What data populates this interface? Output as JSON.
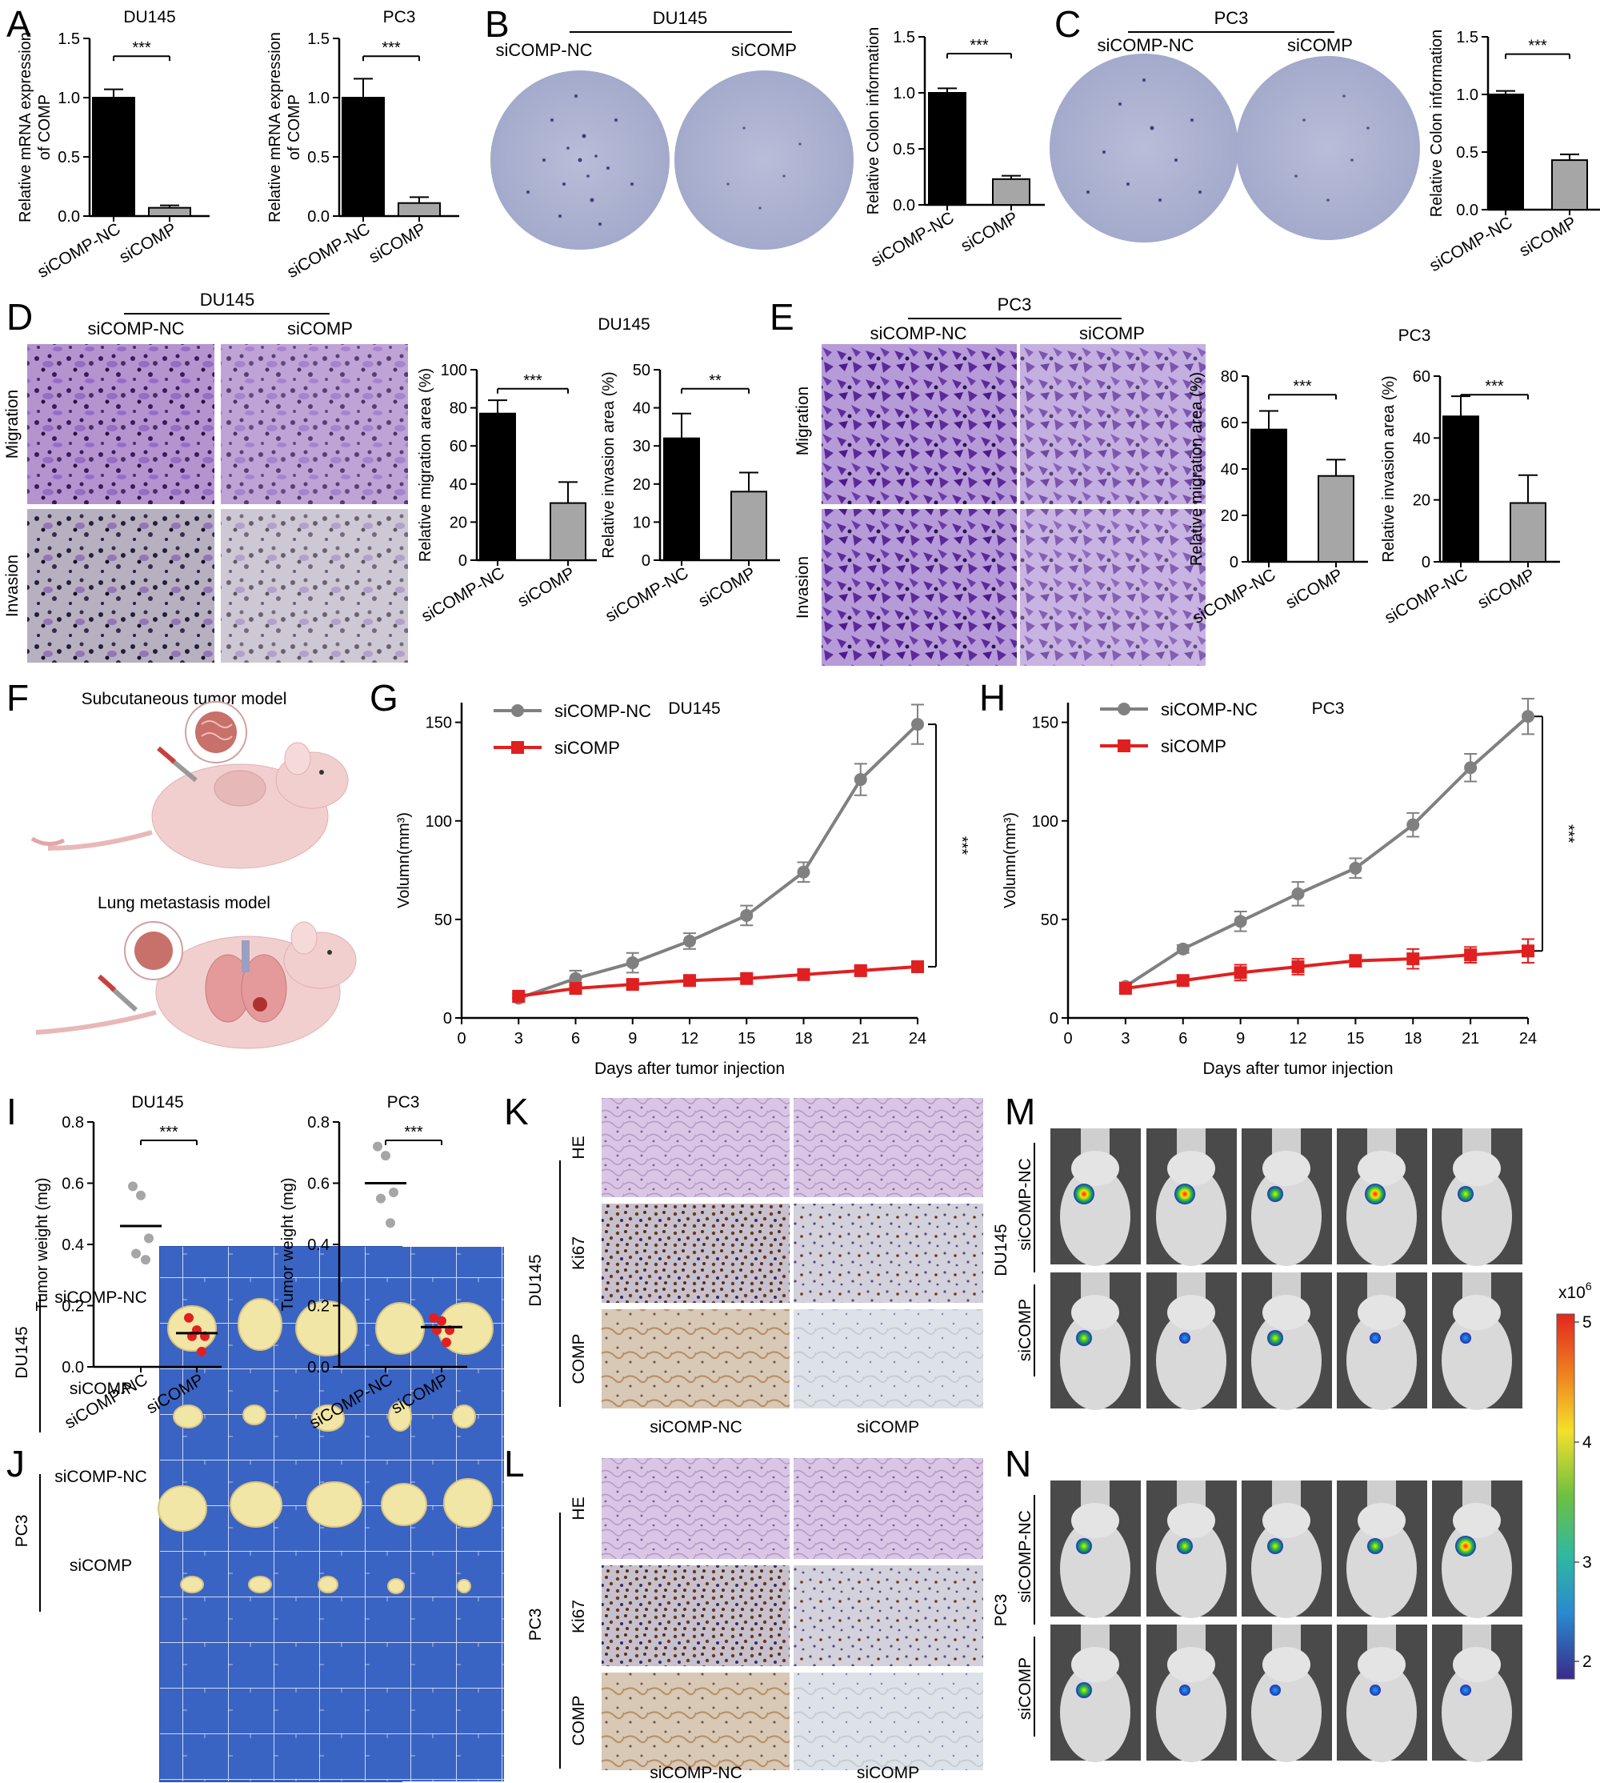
{
  "panel_labels": [
    "A",
    "B",
    "C",
    "D",
    "E",
    "F",
    "G",
    "H",
    "I",
    "J",
    "K",
    "L",
    "M",
    "N"
  ],
  "groups": {
    "nc": "siCOMP-NC",
    "si": "siCOMP"
  },
  "cell_lines": {
    "du145": "DU145",
    "pc3": "PC3"
  },
  "significance": {
    "three": "***",
    "two": "**"
  },
  "rows": {
    "migration": "Migration",
    "invasion": "Invasion"
  },
  "stains": {
    "he": "HE",
    "ki67": "Ki67",
    "comp": "COMP"
  },
  "model_labels": {
    "subcutaneous": "Subcutaneous tumor model",
    "lung": "Lung metastasis model"
  },
  "colorbar": {
    "exponent_label": "x10",
    "exponent_sup": "6",
    "ticks": [
      "5",
      "4",
      "3",
      "2"
    ]
  },
  "colors": {
    "gray_series": "#808080",
    "red_series": "#e02020",
    "black_bar": "#000000",
    "gray_bar": "#a6a6a6",
    "red_dot": "#e02020",
    "gray_dot": "#a6a6a6"
  },
  "chart_data": [
    {
      "id": "A1",
      "type": "bar",
      "title": "DU145",
      "ylabel": "Relative mRNA expression of COMP",
      "ylabel_lines": [
        "Relative mRNA expression",
        "of COMP"
      ],
      "categories": [
        "siCOMP-NC",
        "siCOMP"
      ],
      "values": [
        1.0,
        0.07
      ],
      "errors": [
        0.07,
        0.02
      ],
      "ylim": [
        0,
        1.5
      ],
      "yticks": [
        "0.0",
        "0.5",
        "1.0",
        "1.5"
      ],
      "significance": "***"
    },
    {
      "id": "A2",
      "type": "bar",
      "title": "PC3",
      "ylabel": "Relative mRNA expression of COMP",
      "ylabel_lines": [
        "Relative mRNA expression",
        "of COMP"
      ],
      "categories": [
        "siCOMP-NC",
        "siCOMP"
      ],
      "values": [
        1.0,
        0.11
      ],
      "errors": [
        0.16,
        0.05
      ],
      "ylim": [
        0,
        1.5
      ],
      "yticks": [
        "0.0",
        "0.5",
        "1.0",
        "1.5"
      ],
      "significance": "***"
    },
    {
      "id": "B",
      "type": "bar",
      "title": "",
      "ylabel": "Relative Colon information",
      "categories": [
        "siCOMP-NC",
        "siCOMP"
      ],
      "values": [
        1.0,
        0.23
      ],
      "errors": [
        0.04,
        0.03
      ],
      "ylim": [
        0,
        1.5
      ],
      "yticks": [
        "0.0",
        "0.5",
        "1.0",
        "1.5"
      ],
      "significance": "***"
    },
    {
      "id": "C",
      "type": "bar",
      "title": "",
      "ylabel": "Relative Colon information",
      "categories": [
        "siCOMP-NC",
        "siCOMP"
      ],
      "values": [
        1.0,
        0.43
      ],
      "errors": [
        0.03,
        0.05
      ],
      "ylim": [
        0,
        1.5
      ],
      "yticks": [
        "0.0",
        "0.5",
        "1.0",
        "1.5"
      ],
      "significance": "***"
    },
    {
      "id": "D1",
      "type": "bar",
      "title": "",
      "ylabel": "Relative migration area (%)",
      "categories": [
        "siCOMP-NC",
        "siCOMP"
      ],
      "values": [
        77,
        30
      ],
      "errors": [
        7,
        11
      ],
      "ylim": [
        0,
        100
      ],
      "yticks": [
        "0",
        "20",
        "40",
        "60",
        "80",
        "100"
      ],
      "significance": "***"
    },
    {
      "id": "D2",
      "type": "bar",
      "title": "",
      "ylabel": "Relative invasion area (%)",
      "categories": [
        "siCOMP-NC",
        "siCOMP"
      ],
      "values": [
        32,
        18
      ],
      "errors": [
        6.5,
        5
      ],
      "ylim": [
        0,
        50
      ],
      "yticks": [
        "0",
        "10",
        "20",
        "30",
        "40",
        "50"
      ],
      "significance": "**"
    },
    {
      "id": "E1",
      "type": "bar",
      "title": "",
      "ylabel": "Relative migration area (%)",
      "categories": [
        "siCOMP-NC",
        "siCOMP"
      ],
      "values": [
        57,
        37
      ],
      "errors": [
        8,
        7
      ],
      "ylim": [
        0,
        80
      ],
      "yticks": [
        "0",
        "20",
        "40",
        "60",
        "80"
      ],
      "significance": "***"
    },
    {
      "id": "E2",
      "type": "bar",
      "title": "",
      "ylabel": "Relative invasion area (%)",
      "categories": [
        "siCOMP-NC",
        "siCOMP"
      ],
      "values": [
        47,
        19
      ],
      "errors": [
        6.5,
        9
      ],
      "ylim": [
        0,
        60
      ],
      "yticks": [
        "0",
        "20",
        "40",
        "60"
      ],
      "significance": "***"
    },
    {
      "id": "G",
      "type": "line",
      "title": "DU145",
      "xlabel": "Days after tumor injection",
      "ylabel": "Volumn(mm³)",
      "x": [
        3,
        6,
        9,
        12,
        15,
        18,
        21,
        24
      ],
      "xlim": [
        0,
        24
      ],
      "xticks": [
        "0",
        "3",
        "6",
        "9",
        "12",
        "15",
        "18",
        "21",
        "24"
      ],
      "ylim": [
        0,
        160
      ],
      "yticks": [
        "0",
        "50",
        "100",
        "150"
      ],
      "significance": "***",
      "series": [
        {
          "name": "siCOMP-NC",
          "values": [
            10,
            20,
            28,
            39,
            52,
            74,
            121,
            149
          ],
          "errors": [
            2,
            4,
            5,
            4,
            5,
            5,
            8,
            10
          ]
        },
        {
          "name": "siCOMP",
          "values": [
            11,
            15,
            17,
            19,
            20,
            22,
            24,
            26
          ],
          "errors": [
            1,
            2,
            2,
            2,
            2,
            2,
            2,
            2
          ]
        }
      ]
    },
    {
      "id": "H",
      "type": "line",
      "title": "PC3",
      "xlabel": "Days after tumor injection",
      "ylabel": "Volumn(mm³)",
      "x": [
        3,
        6,
        9,
        12,
        15,
        18,
        21,
        24
      ],
      "xlim": [
        0,
        24
      ],
      "xticks": [
        "0",
        "3",
        "6",
        "9",
        "12",
        "15",
        "18",
        "21",
        "24"
      ],
      "ylim": [
        0,
        160
      ],
      "yticks": [
        "0",
        "50",
        "100",
        "150"
      ],
      "significance": "***",
      "series": [
        {
          "name": "siCOMP-NC",
          "values": [
            16,
            35,
            49,
            63,
            76,
            98,
            127,
            153
          ],
          "errors": [
            2,
            2,
            5,
            6,
            5,
            6,
            7,
            9
          ]
        },
        {
          "name": "siCOMP",
          "values": [
            15,
            19,
            23,
            26,
            29,
            30,
            32,
            34
          ],
          "errors": [
            1,
            2,
            4,
            4,
            3,
            5,
            4,
            6
          ]
        }
      ]
    },
    {
      "id": "I1",
      "type": "scatter",
      "title": "DU145",
      "ylabel": "Tumor weight (mg)",
      "categories": [
        "siCOMP-NC",
        "siCOMP"
      ],
      "ylim": [
        0,
        0.8
      ],
      "yticks": [
        "0.0",
        "0.2",
        "0.4",
        "0.6",
        "0.8"
      ],
      "significance": "***",
      "points": [
        [
          0.59,
          0.56,
          0.42,
          0.37,
          0.35
        ],
        [
          0.16,
          0.12,
          0.1,
          0.1,
          0.05
        ]
      ],
      "means": [
        0.46,
        0.11
      ]
    },
    {
      "id": "I2",
      "type": "scatter",
      "title": "PC3",
      "ylabel": "Tumor weight (mg)",
      "categories": [
        "siCOMP-NC",
        "siCOMP"
      ],
      "ylim": [
        0,
        0.8
      ],
      "yticks": [
        "0.0",
        "0.2",
        "0.4",
        "0.6",
        "0.8"
      ],
      "significance": "***",
      "points": [
        [
          0.72,
          0.69,
          0.57,
          0.55,
          0.47
        ],
        [
          0.16,
          0.15,
          0.12,
          0.12,
          0.08
        ]
      ],
      "means": [
        0.6,
        0.13
      ]
    }
  ]
}
